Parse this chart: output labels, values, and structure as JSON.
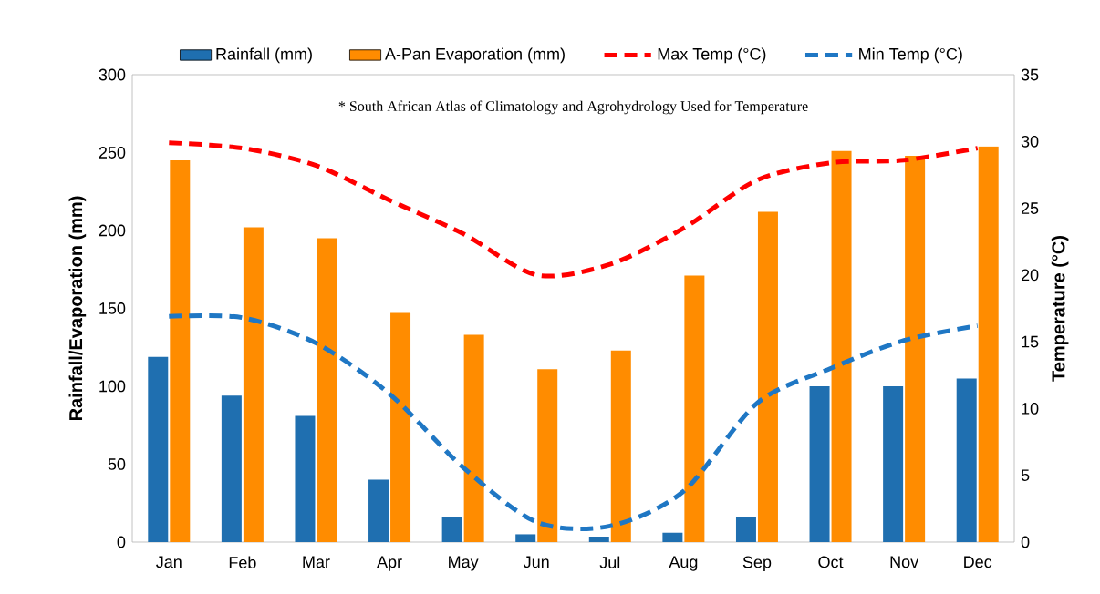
{
  "chart_data": {
    "type": "bar",
    "categories": [
      "Jan",
      "Feb",
      "Mar",
      "Apr",
      "May",
      "Jun",
      "Jul",
      "Aug",
      "Sep",
      "Oct",
      "Nov",
      "Dec"
    ],
    "ylabel": "Rainfall/Evaporation (mm)",
    "y2label": "Temperature (°C)",
    "ylim": [
      0,
      300
    ],
    "yticks": [
      0,
      50,
      100,
      150,
      200,
      250,
      300
    ],
    "y2lim": [
      0,
      35
    ],
    "y2ticks": [
      0,
      5,
      10,
      15,
      20,
      25,
      30,
      35
    ],
    "legend": "top",
    "marker": "none",
    "grid": false,
    "annotations": [
      "* South African Atlas of Climatology and Agrohydrology Used for Temperature"
    ],
    "series": [
      {
        "name": "Rainfall (mm)",
        "color": "#1f6fb0",
        "values": [
          119,
          94,
          81,
          40,
          16,
          5,
          3.5,
          6,
          16,
          100,
          100,
          105
        ]
      },
      {
        "name": "A-Pan Evaporation (mm)",
        "color": "#ff8c00",
        "values": [
          245,
          202,
          195,
          147,
          133,
          111,
          123,
          171,
          212,
          251,
          248,
          254
        ]
      },
      {
        "name": "Max Temp (°C)",
        "type": "line",
        "axis": "y2",
        "line_style": "dashed",
        "color": "#ff0000",
        "values": [
          29.9,
          29.5,
          28.2,
          25.6,
          23.1,
          20,
          20.8,
          23.5,
          27.1,
          28.4,
          28.6,
          29.5
        ]
      },
      {
        "name": "Min Temp (°C)",
        "type": "line",
        "axis": "y2",
        "line_style": "dashed",
        "color": "#1f77c4",
        "values": [
          16.9,
          16.8,
          14.9,
          11.1,
          5.6,
          1.5,
          1.2,
          3.8,
          10.4,
          13,
          15.1,
          16.2
        ]
      }
    ]
  }
}
